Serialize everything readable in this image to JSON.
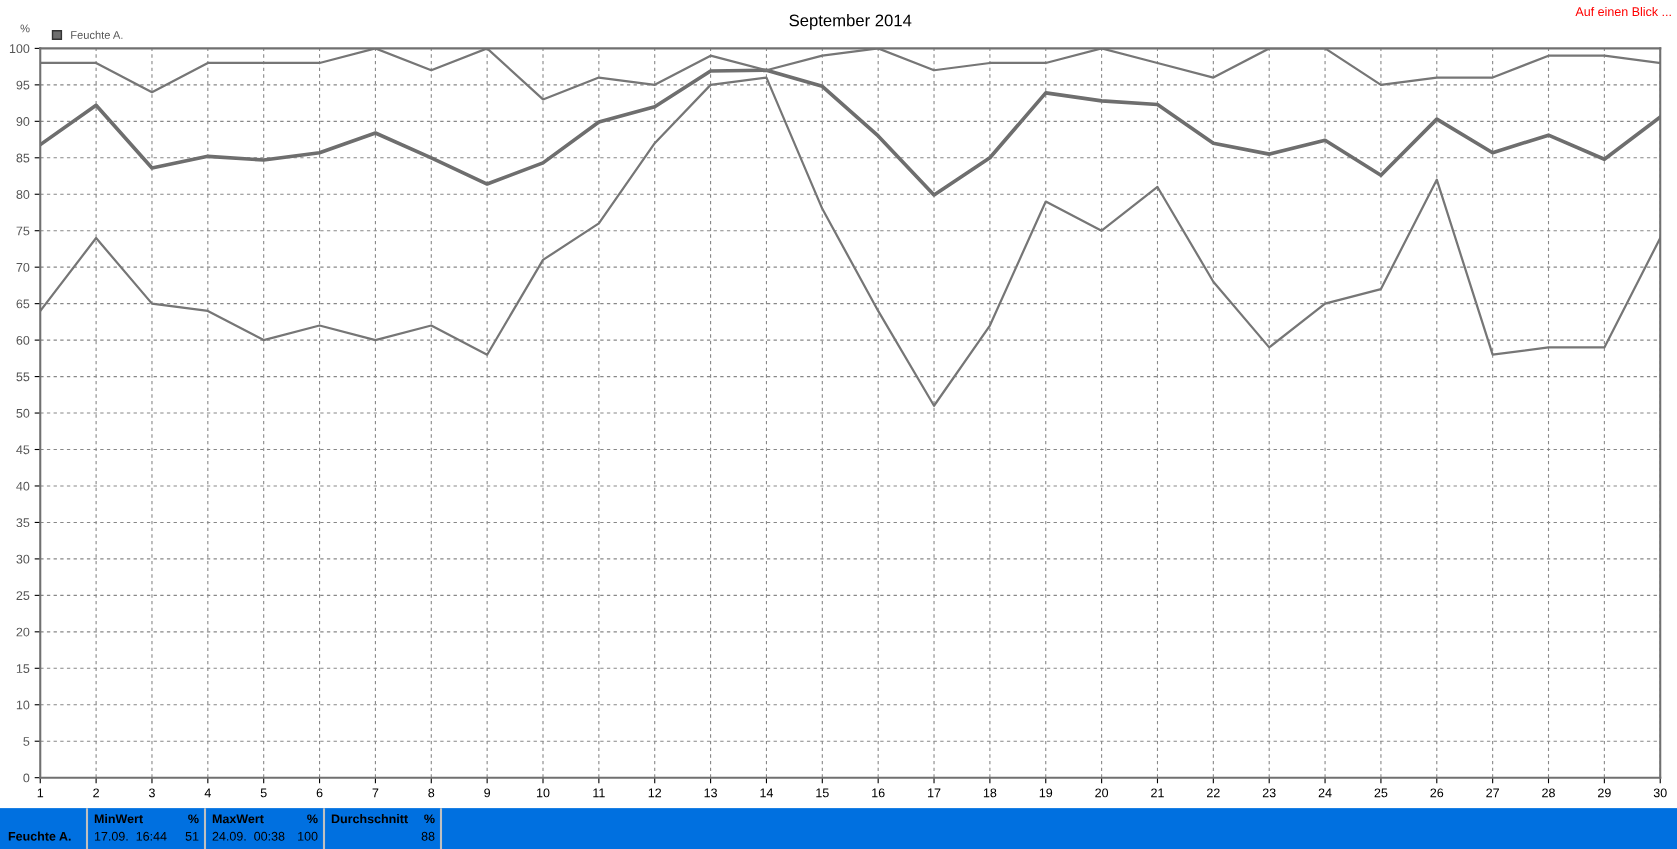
{
  "chart_data": {
    "type": "line",
    "title": "September 2014",
    "ylabel": "%",
    "x": [
      1,
      2,
      3,
      4,
      5,
      6,
      7,
      8,
      9,
      10,
      11,
      12,
      13,
      14,
      15,
      16,
      17,
      18,
      19,
      20,
      21,
      22,
      23,
      24,
      25,
      26,
      27,
      28,
      29,
      30
    ],
    "series": [
      {
        "name": "Feuchte A.",
        "color": "#6e6e6e",
        "values": [
          86.8,
          92.2,
          83.6,
          85.2,
          84.7,
          85.7,
          88.4,
          85,
          81.4,
          84.3,
          89.9,
          92,
          96.9,
          97,
          94.8,
          88,
          79.9,
          85,
          93.9,
          92.8,
          92.3,
          87,
          85.5,
          87.4,
          82.6,
          90.3,
          85.7,
          88.1,
          84.8,
          90.6
        ]
      },
      {
        "color": "#767676",
        "values": [
          98,
          98,
          94,
          98,
          98,
          98,
          100,
          97,
          100,
          93,
          96,
          95,
          99,
          97,
          99,
          100,
          97,
          98,
          98,
          100,
          98,
          96,
          100,
          100,
          95,
          96,
          96,
          99,
          99,
          98
        ]
      },
      {
        "color": "#767676",
        "values": [
          64,
          74,
          65,
          64,
          60,
          62,
          60,
          62,
          58,
          71,
          76,
          87,
          95,
          96,
          78,
          64,
          51,
          62,
          79,
          75,
          81,
          68,
          59,
          65,
          67,
          82,
          58,
          59,
          59,
          74
        ]
      }
    ],
    "xlim": [
      1,
      30
    ],
    "xticks": [
      1,
      2,
      3,
      4,
      5,
      6,
      7,
      8,
      9,
      10,
      11,
      12,
      13,
      14,
      15,
      16,
      17,
      18,
      19,
      20,
      21,
      22,
      23,
      24,
      25,
      26,
      27,
      28,
      29,
      30
    ],
    "ylim": [
      0,
      100
    ],
    "yticks": [
      0,
      5,
      10,
      15,
      20,
      25,
      30,
      35,
      40,
      45,
      50,
      55,
      60,
      65,
      70,
      75,
      80,
      85,
      90,
      95,
      100
    ],
    "grid": true,
    "legend": "top left",
    "line_style": "solid",
    "marker": "none",
    "annotations": [
      "Auf einen Blick ...",
      "Feuchte A.",
      "MinWert",
      "%",
      "17.09.  16:44",
      "51",
      "MaxWert",
      "%",
      "24.09.  00:38",
      "100",
      "Durchschnitt",
      "%",
      "88"
    ]
  }
}
